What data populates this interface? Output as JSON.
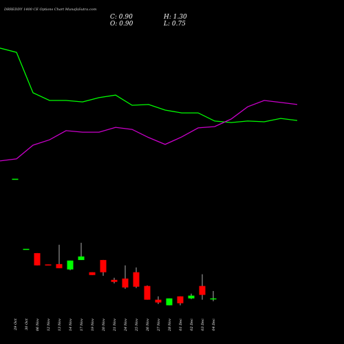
{
  "chart_data": {
    "type": "candlestick",
    "title": "DRREDDY 1400 CE Options Chart MunafaSutra.com",
    "ohlc_labels": {
      "close": "C: 0.90",
      "high": "H: 1.30",
      "open": "O: 0.90",
      "low": "L: 0.75"
    },
    "categories": [
      "29 Oct",
      "30 Oct",
      "06 Nov",
      "12 Nov",
      "13 Nov",
      "14 Nov",
      "17 Nov",
      "19 Nov",
      "20 Nov",
      "21 Nov",
      "24 Nov",
      "25 Nov",
      "26 Nov",
      "27 Nov",
      "28 Nov",
      "01 Dec",
      "02 Dec",
      "03 Dec",
      "04 Dec"
    ],
    "open": [
      7.35,
      3.57,
      3.34,
      2.73,
      2.75,
      2.46,
      2.97,
      2.31,
      2.97,
      1.9,
      1.97,
      2.31,
      1.57,
      0.83,
      0.53,
      1.01,
      0.9,
      1.57,
      0.9
    ],
    "high": [
      7.35,
      3.57,
      3.34,
      2.73,
      3.79,
      2.94,
      3.9,
      2.31,
      2.97,
      2.01,
      2.68,
      2.57,
      1.6,
      1.01,
      0.9,
      1.01,
      1.16,
      2.2,
      1.3
    ],
    "low": [
      7.35,
      3.57,
      2.68,
      2.71,
      2.53,
      2.42,
      2.97,
      2.16,
      2.12,
      1.71,
      1.42,
      1.46,
      0.83,
      0.6,
      0.53,
      0.53,
      0.86,
      0.83,
      0.75
    ],
    "close": [
      7.35,
      3.57,
      2.68,
      2.71,
      2.53,
      2.94,
      3.16,
      2.16,
      2.31,
      1.79,
      1.49,
      1.53,
      0.83,
      0.68,
      0.9,
      0.64,
      1.05,
      1.09,
      0.9
    ],
    "up_color": "#00ff00",
    "down_color": "#ff0000",
    "ylim": [
      0,
      15.5
    ],
    "series": [
      {
        "color": "#00ff00",
        "values": [
          14.39,
          14.16,
          11.98,
          11.57,
          11.57,
          11.49,
          11.72,
          11.86,
          11.31,
          11.35,
          11.05,
          10.9,
          10.9,
          10.46,
          10.38,
          10.46,
          10.42,
          10.6,
          10.49
        ]
      },
      {
        "color": "#cc00cc",
        "values": [
          8.31,
          8.42,
          9.16,
          9.45,
          9.94,
          9.86,
          9.86,
          10.12,
          10.01,
          9.57,
          9.2,
          9.6,
          10.09,
          10.16,
          10.57,
          11.23,
          11.57,
          11.46,
          11.35
        ]
      }
    ]
  }
}
